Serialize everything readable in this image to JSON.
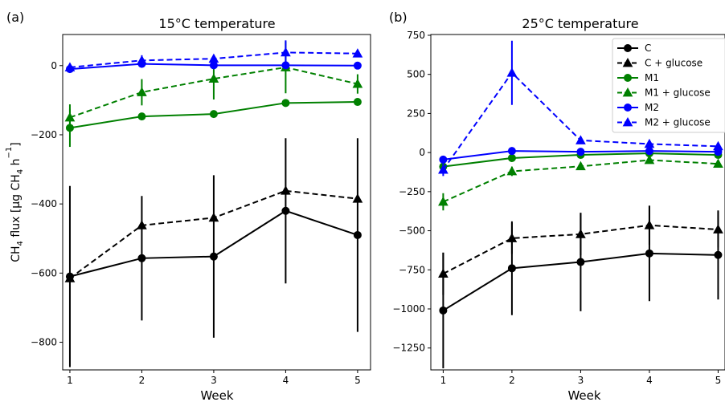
{
  "chart_data": [
    {
      "type": "line",
      "panel_label": "(a)",
      "title": "15$^\\circ$C temperature",
      "title_text": "15°C temperature",
      "xlabel": "Week",
      "ylabel_parts": [
        "CH",
        "4",
        " flux [µg CH",
        "4",
        " h",
        "−1",
        "]"
      ],
      "x": [
        1,
        2,
        3,
        4,
        5
      ],
      "xticks": [
        1,
        2,
        3,
        4,
        5
      ],
      "xtick_labels": [
        "1",
        "2",
        "3",
        "4",
        "5"
      ],
      "yticks": [
        -800,
        -600,
        -400,
        -200,
        0
      ],
      "ytick_labels": [
        "−800",
        "−600",
        "−400",
        "−200",
        "0"
      ],
      "xlim": [
        0.9,
        5.18
      ],
      "ylim": [
        -880,
        90
      ],
      "series": [
        {
          "name": "C",
          "color": "#000000",
          "marker": "circle",
          "dashed": false,
          "values": [
            -610,
            -557,
            -552,
            -420,
            -490
          ],
          "err": [
            262,
            180,
            235,
            210,
            280
          ]
        },
        {
          "name": "C + glucose",
          "color": "#000000",
          "marker": "triangle",
          "dashed": true,
          "values": [
            -615,
            -462,
            -440,
            -362,
            -385
          ],
          "err": [
            0,
            0,
            0,
            0,
            0
          ]
        },
        {
          "name": "M1",
          "color": "#008000",
          "marker": "circle",
          "dashed": false,
          "values": [
            -180,
            -147,
            -140,
            -108,
            -105
          ],
          "err": [
            55,
            0,
            0,
            0,
            0
          ]
        },
        {
          "name": "M1 + glucose",
          "color": "#008000",
          "marker": "triangle",
          "dashed": true,
          "values": [
            -150,
            -77,
            -38,
            -5,
            -53
          ],
          "err": [
            38,
            38,
            60,
            75,
            28
          ]
        },
        {
          "name": "M2",
          "color": "#0000ff",
          "marker": "circle",
          "dashed": false,
          "values": [
            -10,
            5,
            1,
            1,
            0
          ],
          "err": [
            8,
            10,
            5,
            8,
            5
          ]
        },
        {
          "name": "M2 + glucose",
          "color": "#0000ff",
          "marker": "triangle",
          "dashed": true,
          "values": [
            -5,
            15,
            20,
            38,
            35
          ],
          "err": [
            5,
            15,
            5,
            35,
            5
          ]
        }
      ]
    },
    {
      "type": "line",
      "panel_label": "(b)",
      "title_text": "25°C temperature",
      "xlabel": "Week",
      "x": [
        1,
        2,
        3,
        4,
        5
      ],
      "xticks": [
        1,
        2,
        3,
        4,
        5
      ],
      "xtick_labels": [
        "1",
        "2",
        "3",
        "4",
        "5"
      ],
      "yticks": [
        -1250,
        -1000,
        -750,
        -500,
        -250,
        0,
        250,
        500,
        750
      ],
      "ytick_labels": [
        "−1250",
        "−1000",
        "−750",
        "−500",
        "−250",
        "0",
        "250",
        "500",
        "750"
      ],
      "xlim": [
        0.82,
        5.1
      ],
      "ylim": [
        -1390,
        755
      ],
      "legend_position": "top-right",
      "series": [
        {
          "name": "C",
          "color": "#000000",
          "marker": "circle",
          "dashed": false,
          "values": [
            -1010,
            -740,
            -700,
            -645,
            -655
          ],
          "err": [
            370,
            300,
            315,
            305,
            285
          ]
        },
        {
          "name": "C + glucose",
          "color": "#000000",
          "marker": "triangle",
          "dashed": true,
          "values": [
            -775,
            -548,
            -522,
            -465,
            -492
          ],
          "err": [
            135,
            100,
            135,
            125,
            115
          ]
        },
        {
          "name": "M1",
          "color": "#008000",
          "marker": "circle",
          "dashed": false,
          "values": [
            -90,
            -35,
            -15,
            -5,
            -15
          ],
          "err": [
            0,
            0,
            0,
            0,
            0
          ]
        },
        {
          "name": "M1 + glucose",
          "color": "#008000",
          "marker": "triangle",
          "dashed": true,
          "values": [
            -315,
            -120,
            -88,
            -48,
            -72
          ],
          "err": [
            55,
            30,
            0,
            0,
            0
          ]
        },
        {
          "name": "M2",
          "color": "#0000ff",
          "marker": "circle",
          "dashed": false,
          "values": [
            -45,
            10,
            5,
            10,
            5
          ],
          "err": [
            0,
            0,
            0,
            0,
            0
          ]
        },
        {
          "name": "M2 + glucose",
          "color": "#0000ff",
          "marker": "triangle",
          "dashed": true,
          "values": [
            -110,
            510,
            78,
            55,
            40
          ],
          "err": [
            40,
            205,
            0,
            0,
            0
          ]
        }
      ]
    }
  ]
}
